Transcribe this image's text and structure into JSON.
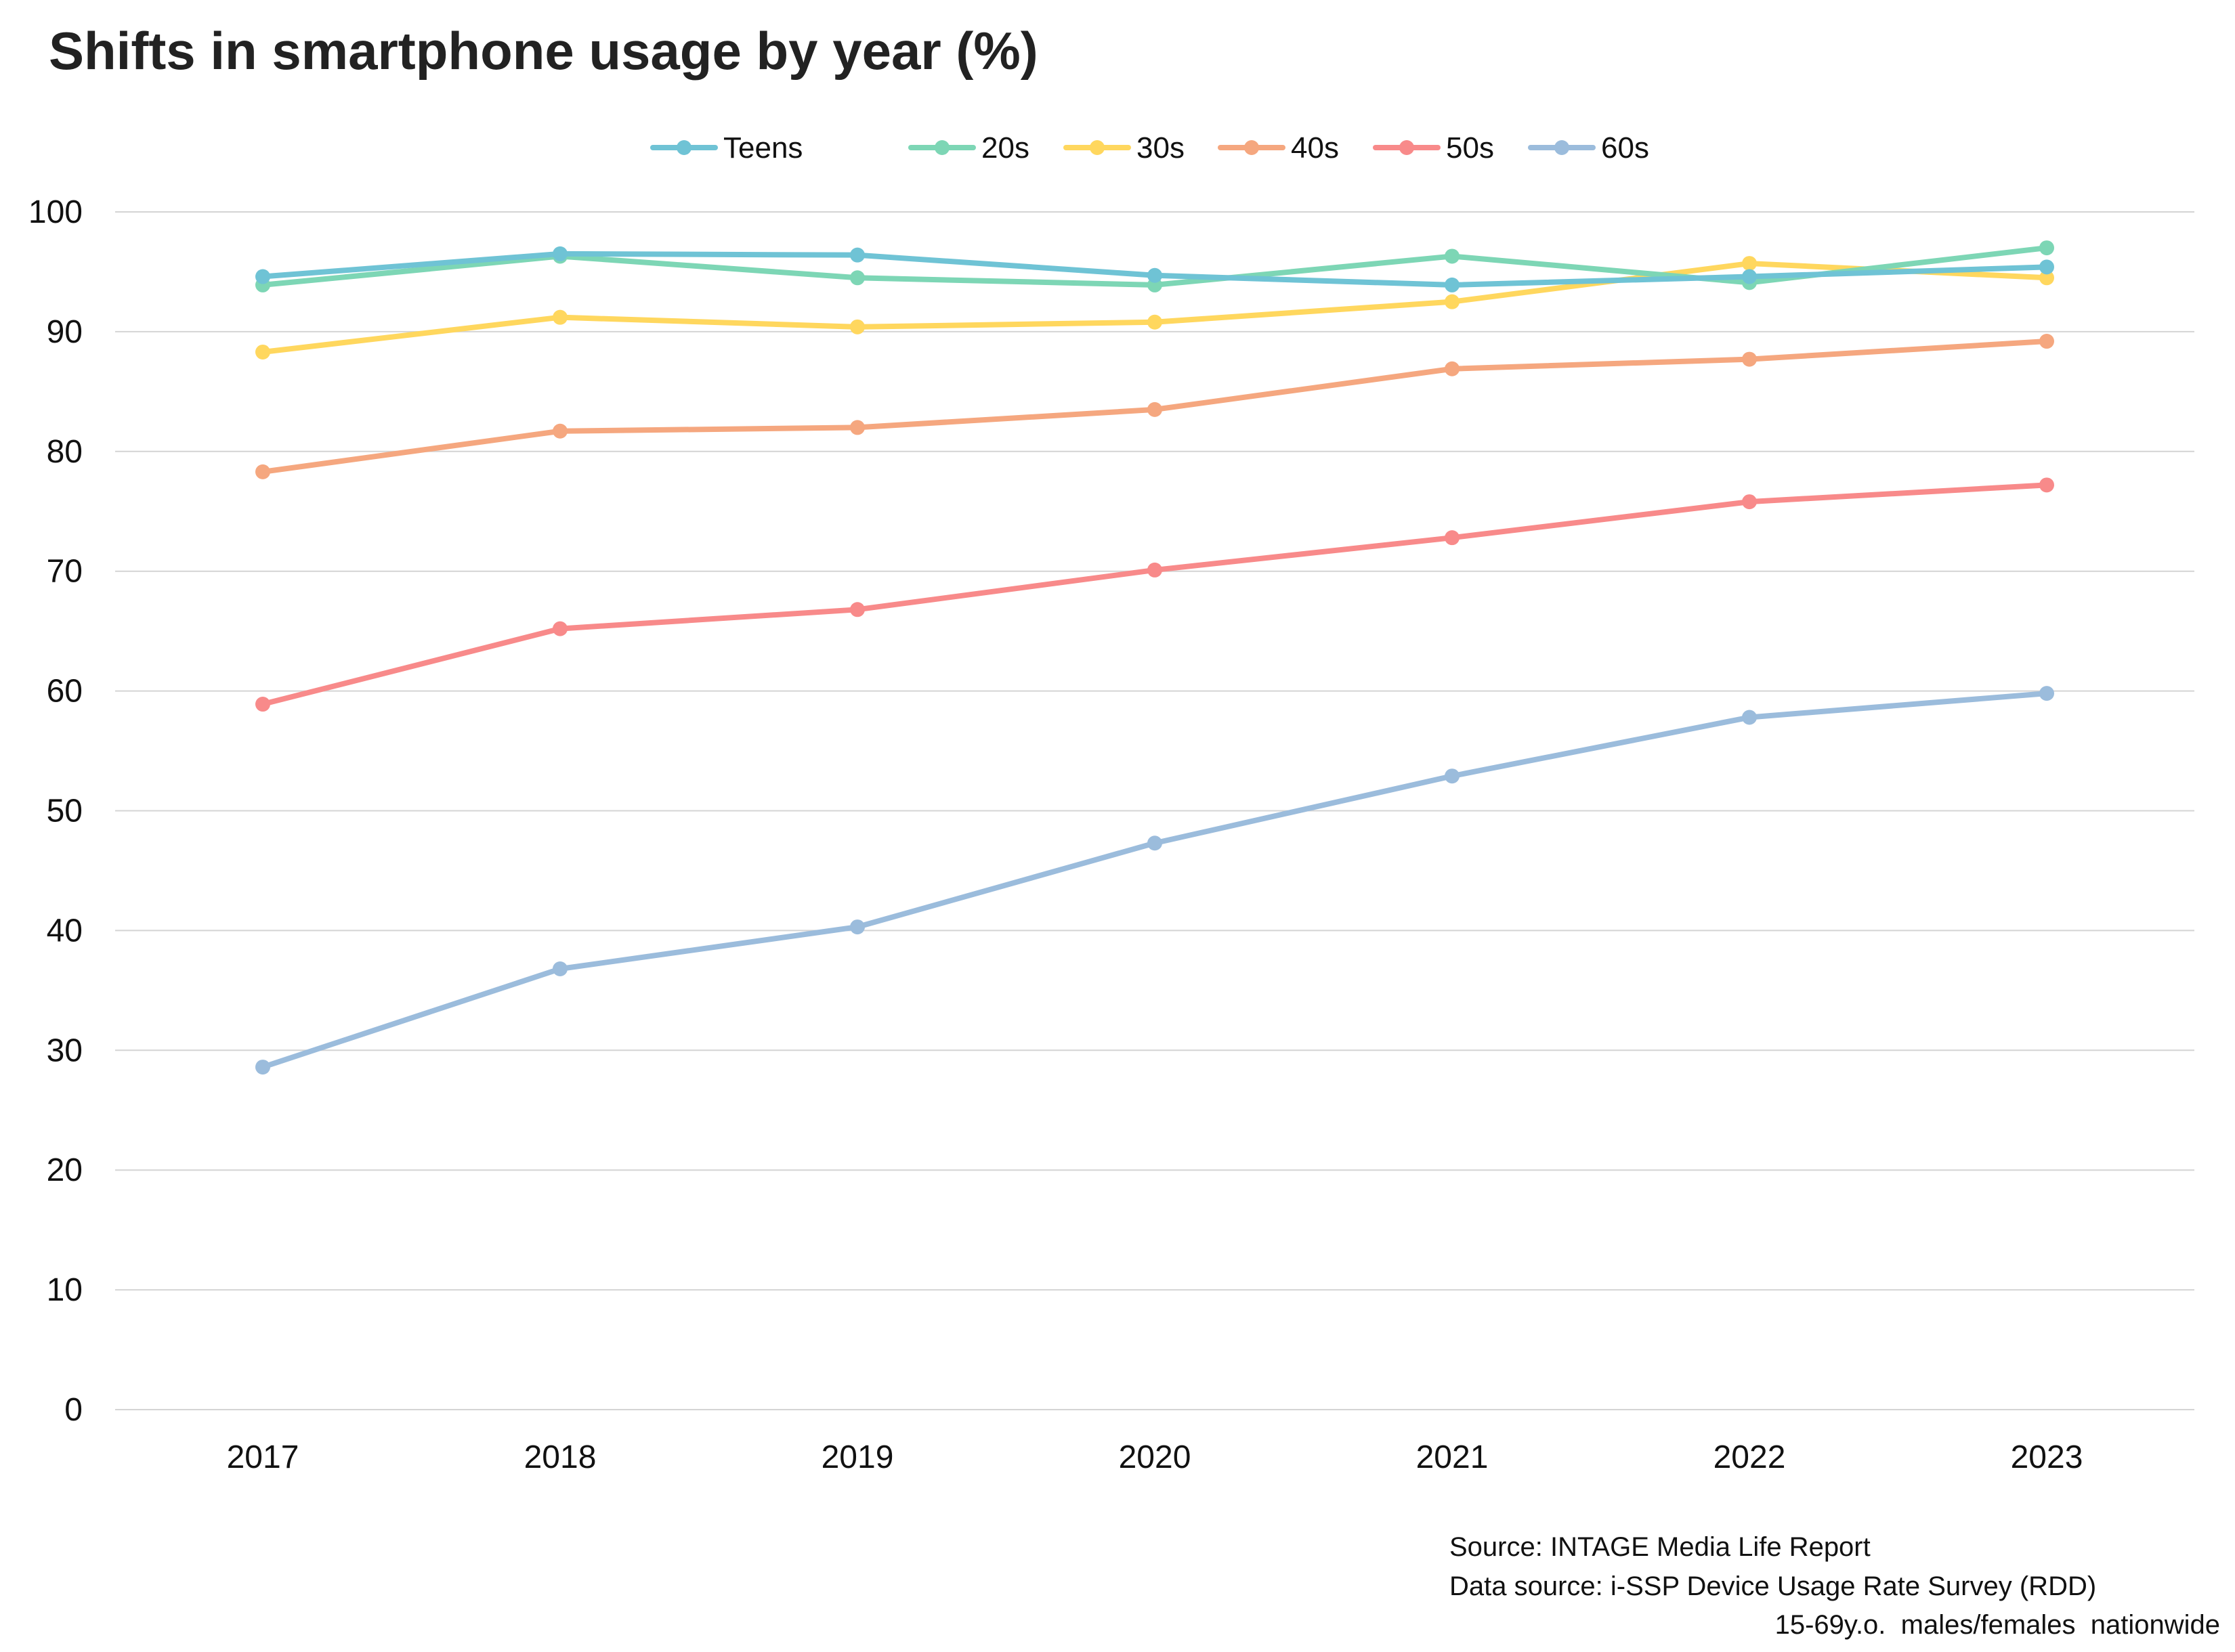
{
  "chart_data": {
    "type": "line",
    "title": "Shifts in smartphone usage by year (%)",
    "xlabel": "",
    "ylabel": "",
    "x": [
      "2017",
      "2018",
      "2019",
      "2020",
      "2021",
      "2022",
      "2023"
    ],
    "ylim": [
      0,
      100
    ],
    "yticks": [
      "0",
      "10",
      "20",
      "30",
      "40",
      "50",
      "60",
      "70",
      "80",
      "90",
      "100"
    ],
    "grid": true,
    "legend_position": "top-center",
    "series": [
      {
        "name": "Teens",
        "color": "#6FC3D5",
        "values": [
          94.6,
          96.5,
          96.4,
          94.7,
          93.9,
          94.6,
          95.4
        ]
      },
      {
        "name": "20s",
        "color": "#7DD6B5",
        "values": [
          93.9,
          96.3,
          94.5,
          93.9,
          96.3,
          94.1,
          97.0
        ]
      },
      {
        "name": "30s",
        "color": "#FFD75E",
        "values": [
          88.3,
          91.2,
          90.4,
          90.8,
          92.5,
          95.7,
          94.5
        ]
      },
      {
        "name": "40s",
        "color": "#F5A77F",
        "values": [
          78.3,
          81.7,
          82.0,
          83.5,
          86.9,
          87.7,
          89.2
        ]
      },
      {
        "name": "50s",
        "color": "#F88A8A",
        "values": [
          58.9,
          65.2,
          66.8,
          70.1,
          72.8,
          75.8,
          77.2
        ]
      },
      {
        "name": "60s",
        "color": "#9BBCDC",
        "values": [
          28.6,
          36.8,
          40.3,
          47.3,
          52.9,
          57.8,
          59.8
        ]
      }
    ]
  },
  "source": {
    "line1": "Source: INTAGE Media Life Report",
    "line2": "Data source: i-SSP Device Usage Rate Survey (RDD)",
    "line3": "15-69y.o.  males/females  nationwide"
  }
}
